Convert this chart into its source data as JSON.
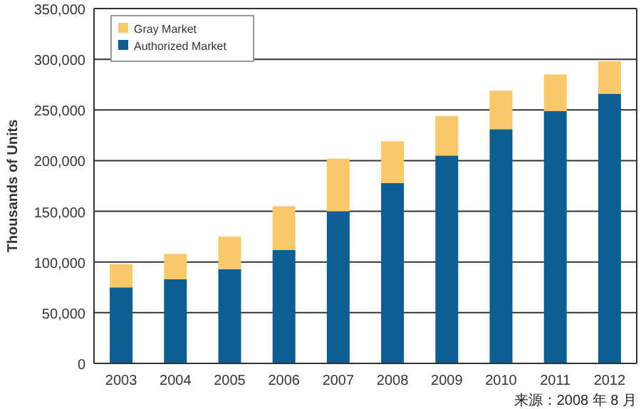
{
  "chart_data": {
    "type": "bar",
    "stacked": true,
    "ylabel": "Thousands of Units",
    "categories": [
      "2003",
      "2004",
      "2005",
      "2006",
      "2007",
      "2008",
      "2009",
      "2010",
      "2011",
      "2012"
    ],
    "series": [
      {
        "name": "Authorized Market",
        "color": "#0d5f93",
        "values": [
          75000,
          83000,
          93000,
          112000,
          150000,
          178000,
          205000,
          231000,
          249000,
          266000
        ]
      },
      {
        "name": "Gray Market",
        "color": "#f8c96b",
        "values": [
          23000,
          25000,
          32000,
          43000,
          52000,
          41000,
          39000,
          38000,
          36000,
          32000
        ]
      }
    ],
    "ylim": [
      0,
      350000
    ],
    "yticks": [
      {
        "value": 0,
        "label": "0"
      },
      {
        "value": 50000,
        "label": "50,000"
      },
      {
        "value": 100000,
        "label": "100,000"
      },
      {
        "value": 150000,
        "label": "150,000"
      },
      {
        "value": 200000,
        "label": "200,000"
      },
      {
        "value": 250000,
        "label": "250,000"
      },
      {
        "value": 300000,
        "label": "300,000"
      },
      {
        "value": 350000,
        "label": "350,000"
      }
    ],
    "grid": "y",
    "legend": "top left",
    "annotations": [
      "来源：2008 年 8 月"
    ]
  }
}
